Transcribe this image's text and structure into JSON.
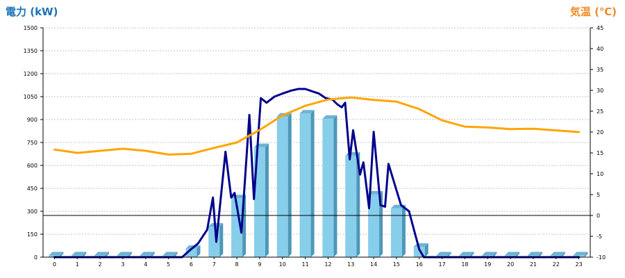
{
  "header": {
    "left_title": "電力 (kW)",
    "right_title": "気温 (℃)"
  },
  "colors": {
    "bar_face": "#87ceeb",
    "bar_side": "#4e97b8",
    "bar_top": "#6fb3d3",
    "power_line": "#00008b",
    "temp_line": "#ffa500",
    "grid": "#c0c0c0"
  },
  "chart_data": {
    "type": "bar",
    "title": "",
    "left_axis": {
      "label": "電力 (kW)",
      "ylim": [
        0,
        1500
      ],
      "ticks": [
        "0",
        "150",
        "300",
        "450",
        "600",
        "750",
        "900",
        "1050",
        "1200",
        "1350",
        "1500"
      ]
    },
    "right_axis": {
      "label": "気温 (℃)",
      "ylim": [
        -10,
        45
      ],
      "ticks": [
        "-10",
        "-5",
        "0",
        "5",
        "10",
        "15",
        "20",
        "25",
        "30",
        "35",
        "40",
        "45"
      ]
    },
    "reference_line_temp": 0,
    "grid": true,
    "categories": [
      "0",
      "1",
      "2",
      "3",
      "4",
      "5",
      "6",
      "7",
      "8",
      "9",
      "10",
      "11",
      "12",
      "13",
      "14",
      "15",
      "16",
      "17",
      "18",
      "19",
      "20",
      "21",
      "22",
      "23"
    ],
    "series": [
      {
        "kind": "bar",
        "axis": "left",
        "values": [
          12,
          12,
          12,
          12,
          12,
          12,
          55,
          200,
          385,
          720,
          920,
          940,
          905,
          665,
          410,
          320,
          68,
          12,
          12,
          12,
          12,
          12,
          12,
          12
        ]
      },
      {
        "kind": "line",
        "axis": "left",
        "points": [
          [
            0,
            0
          ],
          [
            1,
            0
          ],
          [
            2,
            0
          ],
          [
            3,
            0
          ],
          [
            4,
            0
          ],
          [
            5,
            0
          ],
          [
            5.6,
            0
          ],
          [
            5.9,
            40
          ],
          [
            6.3,
            90
          ],
          [
            6.7,
            180
          ],
          [
            6.95,
            390
          ],
          [
            7.1,
            100
          ],
          [
            7.5,
            690
          ],
          [
            7.75,
            390
          ],
          [
            7.9,
            420
          ],
          [
            8.2,
            160
          ],
          [
            8.55,
            930
          ],
          [
            8.75,
            380
          ],
          [
            9.05,
            1040
          ],
          [
            9.3,
            1010
          ],
          [
            9.65,
            1050
          ],
          [
            10,
            1070
          ],
          [
            10.4,
            1090
          ],
          [
            10.7,
            1100
          ],
          [
            11,
            1100
          ],
          [
            11.4,
            1080
          ],
          [
            11.6,
            1070
          ],
          [
            11.9,
            1040
          ],
          [
            12.2,
            1030
          ],
          [
            12.4,
            1000
          ],
          [
            12.6,
            980
          ],
          [
            12.75,
            1010
          ],
          [
            12.95,
            640
          ],
          [
            13.1,
            830
          ],
          [
            13.4,
            540
          ],
          [
            13.55,
            620
          ],
          [
            13.8,
            320
          ],
          [
            14,
            820
          ],
          [
            14.3,
            340
          ],
          [
            14.5,
            330
          ],
          [
            14.65,
            610
          ],
          [
            15.2,
            340
          ],
          [
            15.55,
            300
          ],
          [
            15.8,
            160
          ],
          [
            16,
            50
          ],
          [
            16.2,
            0
          ],
          [
            17,
            0
          ],
          [
            18,
            0
          ],
          [
            19,
            0
          ],
          [
            20,
            0
          ],
          [
            21,
            0
          ],
          [
            22,
            0
          ],
          [
            23,
            0
          ]
        ]
      },
      {
        "kind": "line",
        "axis": "right",
        "points": [
          [
            0,
            15.8
          ],
          [
            1,
            15.0
          ],
          [
            2,
            15.5
          ],
          [
            3,
            16.0
          ],
          [
            4,
            15.5
          ],
          [
            5,
            14.6
          ],
          [
            6,
            14.8
          ],
          [
            7,
            16.2
          ],
          [
            8,
            17.5
          ],
          [
            9,
            20.5
          ],
          [
            10,
            24.0
          ],
          [
            11,
            26.3
          ],
          [
            12,
            27.8
          ],
          [
            13,
            28.3
          ],
          [
            14,
            27.7
          ],
          [
            15,
            27.3
          ],
          [
            16,
            25.5
          ],
          [
            17,
            22.8
          ],
          [
            18,
            21.3
          ],
          [
            19,
            21.1
          ],
          [
            20,
            20.7
          ],
          [
            21,
            20.8
          ],
          [
            22,
            20.4
          ],
          [
            23,
            20.0
          ]
        ]
      }
    ]
  }
}
